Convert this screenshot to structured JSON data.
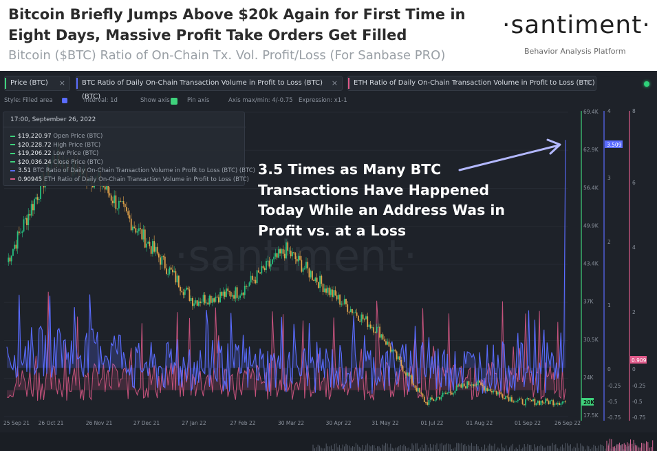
{
  "header": {
    "title": "Bitcoin Briefly Jumps Above $20k Again for First Time in Eight Days, Massive Profit Take Orders Get Filled",
    "subtitle": "Bitcoin ($BTC) Ratio of On-Chain Tx. Vol. Profit/Loss (For Sanbase PRO)",
    "brand": "·santiment·",
    "brand_tagline": "Behavior Analysis Platform"
  },
  "metric_tabs": [
    {
      "label": "Price (BTC)",
      "color": "#3fd27c",
      "close": "×"
    },
    {
      "label": "BTC Ratio of Daily On-Chain Transaction Volume in Profit to Loss (BTC) (BTC)",
      "color": "#5a6cff",
      "close": "×"
    },
    {
      "label": "ETH Ratio of Daily On-Chain Transaction Volume in Profit to Loss (BTC)",
      "color": "#e05a8a",
      "close": "×"
    }
  ],
  "toolbar": {
    "style": "Style: Filled area",
    "interval": "Interval: 1d",
    "show_axis": "Show axis",
    "pin_axis": "Pin axis",
    "axis_maxmin": "Axis max/min: 4/-0.75",
    "expression": "Expression: x1-1"
  },
  "legend": {
    "date": "17:00, September 26, 2022",
    "rows": [
      {
        "value": "$19,220.97",
        "label": "Open Price (BTC)",
        "color": "#3fd27c"
      },
      {
        "value": "$20,228.72",
        "label": "High Price (BTC)",
        "color": "#3fd27c"
      },
      {
        "value": "$19,206.22",
        "label": "Low Price (BTC)",
        "color": "#3fd27c"
      },
      {
        "value": "$20,036.24",
        "label": "Close Price (BTC)",
        "color": "#3fd27c"
      },
      {
        "value": "3.51",
        "label": "BTC Ratio of Daily On-Chain Transaction Volume in Profit to Loss (BTC) (BTC)",
        "color": "#5a6cff"
      },
      {
        "value": "0.90945",
        "label": "ETH Ratio of Daily On-Chain Transaction Volume in Profit to Loss (BTC)",
        "color": "#e05a8a"
      }
    ]
  },
  "annotation": "3.5 Times as Many BTC Transactions Have Happened Today While an Address Was in Profit vs. at a Loss",
  "watermark": "·santiment·",
  "colors": {
    "background": "#1e2229",
    "price": "#3fd27c",
    "candle_up": "#26c281",
    "candle_down": "#e2a24a",
    "btc_ratio": "#5a6cff",
    "eth_ratio": "#e05a8a"
  },
  "chart_data": {
    "type": "line",
    "x_ticks": [
      "25 Sep 21",
      "26 Oct 21",
      "26 Nov 21",
      "27 Dec 21",
      "27 Jan 22",
      "27 Feb 22",
      "30 Mar 22",
      "30 Apr 22",
      "31 May 22",
      "01 Jul 22",
      "01 Aug 22",
      "01 Sep 22",
      "26 Sep 22"
    ],
    "price_axis": {
      "ticks": [
        "69.4K",
        "62.9K",
        "56.4K",
        "49.9K",
        "43.4K",
        "37K",
        "30.5K",
        "24K",
        "17.5K"
      ],
      "range": [
        17500,
        69400
      ],
      "current": "20K"
    },
    "btc_ratio_axis": {
      "ticks": [
        "4",
        "3",
        "2",
        "1",
        "0",
        "-0.25",
        "-0.5",
        "-0.75"
      ],
      "range": [
        -0.75,
        4
      ],
      "current": "3.509"
    },
    "eth_ratio_axis": {
      "ticks": [
        "8",
        "6",
        "4",
        "2",
        "0",
        "-0.25",
        "-0.5",
        "-0.75"
      ],
      "range": [
        -0.75,
        8
      ],
      "current": "0.909"
    },
    "series": [
      {
        "name": "Price (BTC)",
        "monthly_close": [
          43500,
          61000,
          57000,
          47000,
          37000,
          38500,
          45500,
          38000,
          31800,
          19800,
          23300,
          20000,
          20000
        ]
      },
      {
        "name": "BTC Ratio of Daily On-Chain Transaction Volume in Profit to Loss (BTC) (BTC)",
        "last_value": 3.51
      },
      {
        "name": "ETH Ratio of Daily On-Chain Transaction Volume in Profit to Loss (BTC)",
        "last_value": 0.90945
      }
    ]
  }
}
